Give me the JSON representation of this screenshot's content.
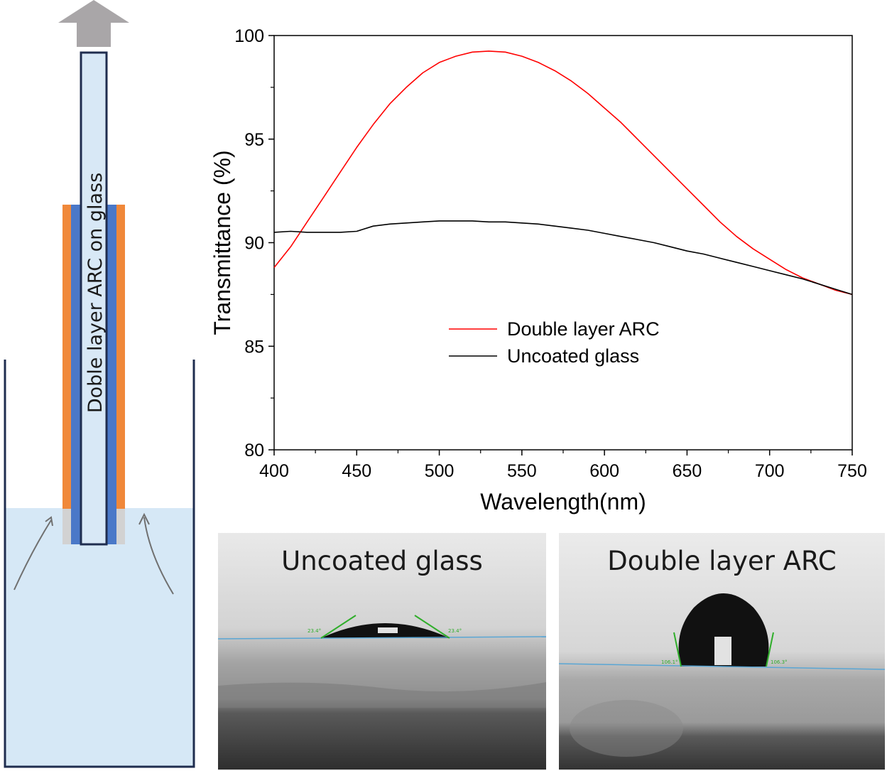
{
  "schematic": {
    "sample_label": "Doble layer ARC on glass",
    "colors": {
      "coating": "#f0883a",
      "inner_coating": "#4a78c8",
      "glass": "#d8e8f6",
      "solution": "#d6e8f6",
      "container": "#1f2d4f",
      "arrow": "#a9a6a8"
    },
    "icons": [
      "up-arrow-icon",
      "flow-arrow-icon"
    ]
  },
  "chart_data": {
    "type": "line",
    "xlabel": "Wavelength(nm)",
    "ylabel": "Transmittance (%)",
    "xlim": [
      400,
      750
    ],
    "ylim": [
      80,
      100
    ],
    "xticks": [
      400,
      450,
      500,
      550,
      600,
      650,
      700,
      750
    ],
    "yticks": [
      80,
      85,
      90,
      95,
      100
    ],
    "grid": false,
    "legend_position": "lower-center",
    "series": [
      {
        "name": "Double layer ARC",
        "color": "#ff0000",
        "x": [
          400,
          410,
          420,
          430,
          440,
          450,
          460,
          470,
          480,
          490,
          500,
          510,
          520,
          530,
          540,
          550,
          560,
          570,
          580,
          590,
          600,
          610,
          620,
          630,
          640,
          650,
          660,
          670,
          680,
          690,
          700,
          710,
          720,
          730,
          740,
          750
        ],
        "y": [
          88.8,
          89.8,
          91.0,
          92.2,
          93.4,
          94.6,
          95.7,
          96.7,
          97.5,
          98.2,
          98.7,
          99.0,
          99.2,
          99.25,
          99.2,
          99.0,
          98.7,
          98.3,
          97.8,
          97.2,
          96.5,
          95.8,
          95.0,
          94.2,
          93.4,
          92.6,
          91.8,
          91.0,
          90.3,
          89.7,
          89.2,
          88.7,
          88.3,
          88.0,
          87.7,
          87.5
        ]
      },
      {
        "name": "Uncoated glass",
        "color": "#000000",
        "x": [
          400,
          410,
          420,
          430,
          440,
          450,
          460,
          470,
          480,
          490,
          500,
          510,
          520,
          530,
          540,
          550,
          560,
          570,
          580,
          590,
          600,
          610,
          620,
          630,
          640,
          650,
          660,
          670,
          680,
          690,
          700,
          710,
          720,
          730,
          740,
          750
        ],
        "y": [
          90.5,
          90.55,
          90.5,
          90.5,
          90.5,
          90.55,
          90.8,
          90.9,
          90.95,
          91.0,
          91.05,
          91.05,
          91.05,
          91.0,
          91.0,
          90.95,
          90.9,
          90.8,
          90.7,
          90.6,
          90.45,
          90.3,
          90.15,
          90.0,
          89.8,
          89.6,
          89.45,
          89.25,
          89.05,
          88.85,
          88.65,
          88.45,
          88.25,
          88.0,
          87.75,
          87.5
        ]
      }
    ]
  },
  "photos": [
    {
      "title": "Uncoated glass",
      "angle_left": "23.4°",
      "angle_right": "23.4°"
    },
    {
      "title": "Double layer ARC",
      "angle_left": "106.1°",
      "angle_right": "106.3°"
    }
  ]
}
